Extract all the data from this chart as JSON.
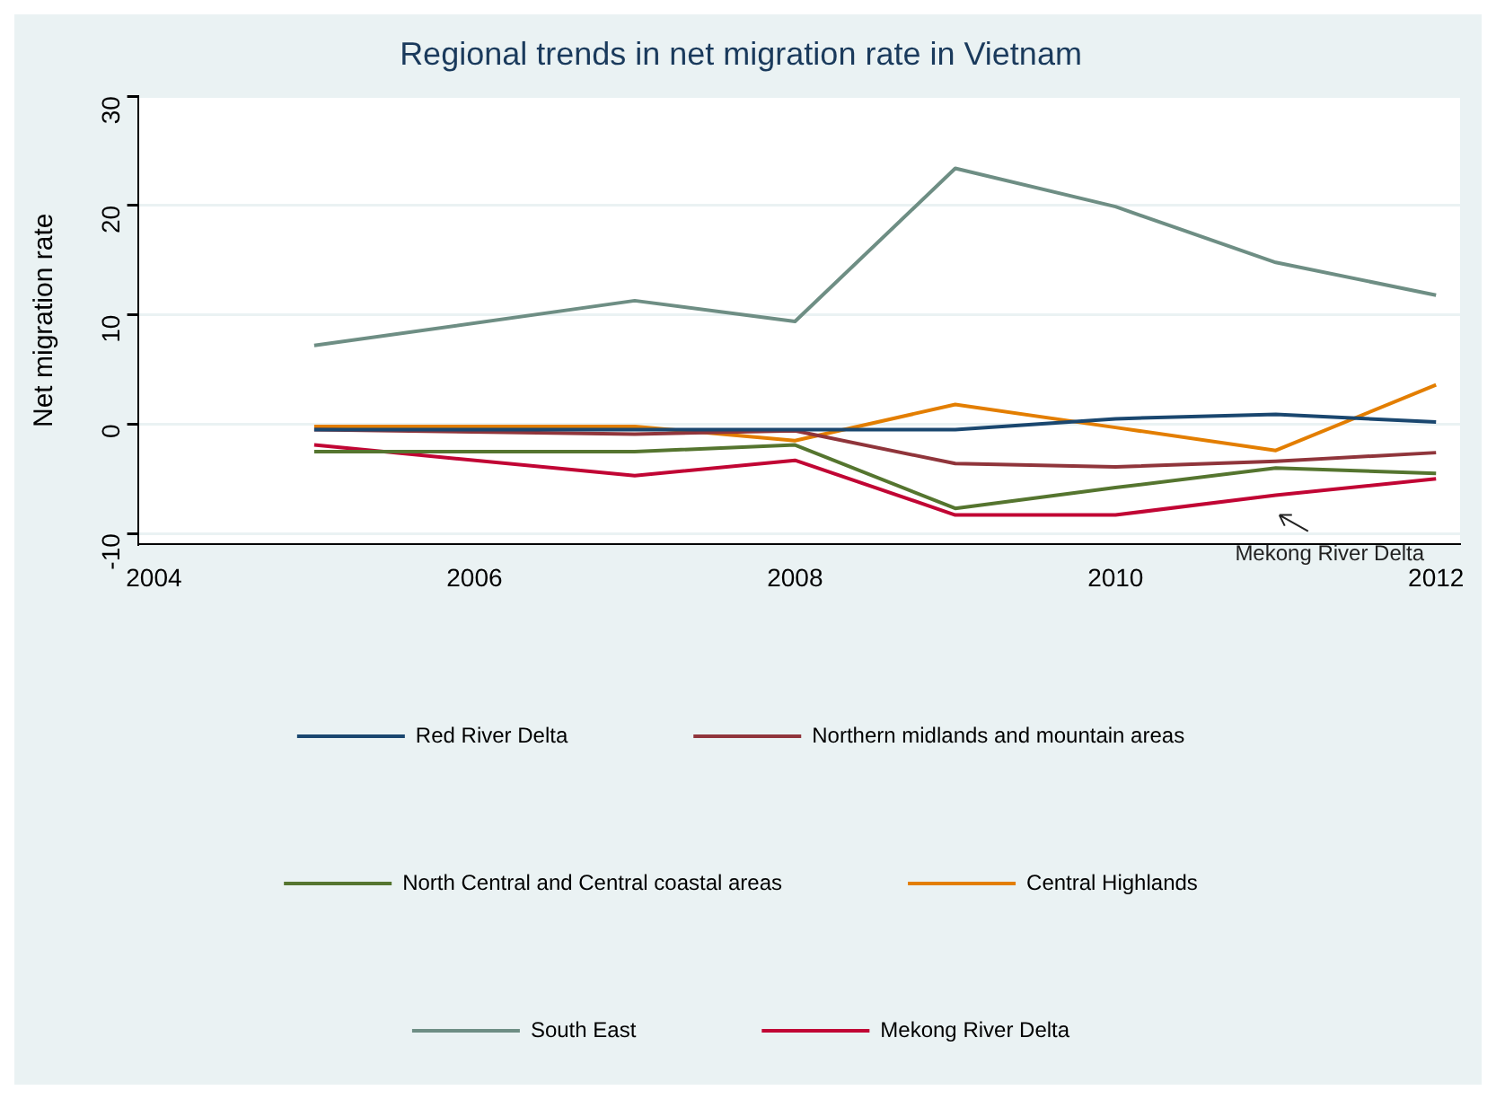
{
  "chart_data": {
    "type": "line",
    "title": "Regional trends in net migration rate in Vietnam",
    "ylabel": "Net migration rate",
    "x": [
      2005,
      2007,
      2008,
      2009,
      2010,
      2011,
      2012
    ],
    "xlim": [
      2003.9,
      2012.15
    ],
    "xticks": [
      2004,
      2006,
      2008,
      2010,
      2012
    ],
    "ylim": [
      -11,
      30
    ],
    "yticks": [
      -10,
      0,
      10,
      20,
      30
    ],
    "grid": "y",
    "legend": "bottom",
    "marker": "none",
    "line_style": "solid",
    "series": [
      {
        "name": "Red River Delta",
        "color": "#1a476f",
        "values": [
          -0.5,
          -0.5,
          -0.5,
          -0.5,
          0.5,
          0.9,
          0.2
        ]
      },
      {
        "name": "Northern midlands and mountain areas",
        "color": "#90353b",
        "values": [
          -0.5,
          -0.9,
          -0.6,
          -3.6,
          -3.9,
          -3.4,
          -2.6
        ]
      },
      {
        "name": "North Central and Central coastal areas",
        "color": "#55752f",
        "values": [
          -2.5,
          -2.5,
          -1.9,
          -7.7,
          -5.8,
          -4.0,
          -4.5
        ]
      },
      {
        "name": "Central Highlands",
        "color": "#e37e00",
        "values": [
          -0.2,
          -0.2,
          -1.5,
          1.8,
          -0.3,
          -2.4,
          3.6
        ]
      },
      {
        "name": "South East",
        "color": "#6e8e84",
        "values": [
          7.2,
          11.3,
          9.4,
          23.4,
          19.9,
          14.8,
          11.8
        ]
      },
      {
        "name": "Mekong River Delta",
        "color": "#c10534",
        "values": [
          -1.9,
          -4.7,
          -3.3,
          -8.3,
          -8.3,
          -6.5,
          -5.0
        ]
      }
    ],
    "annotations": [
      {
        "text": "Mekong River Delta",
        "x": 2011,
        "y": -6.5
      }
    ]
  }
}
